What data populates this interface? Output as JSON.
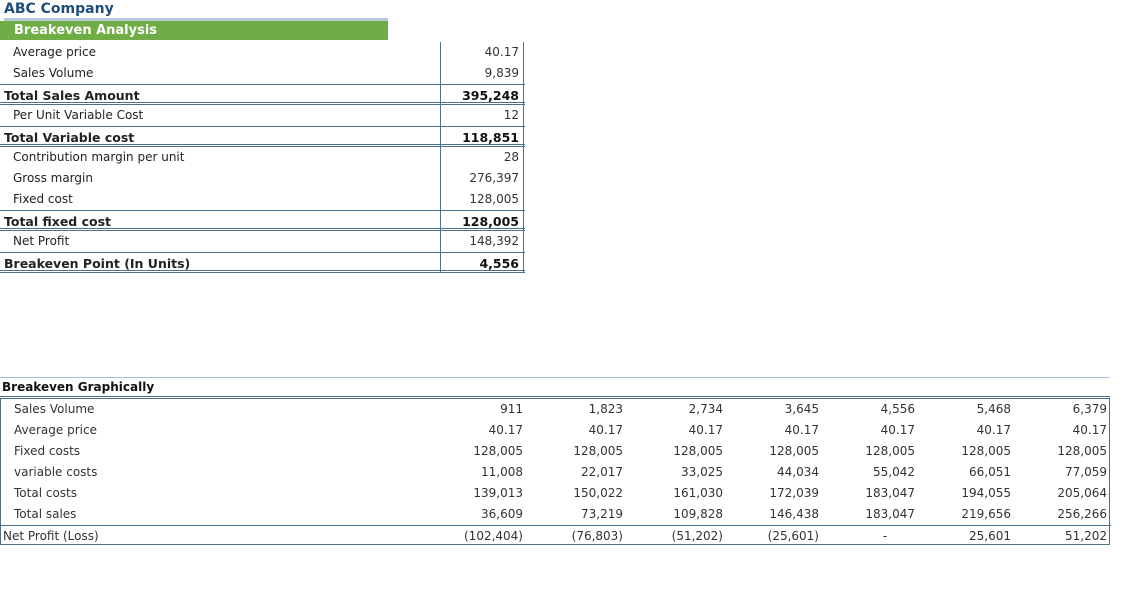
{
  "company": "ABC Company",
  "section_title": "Breakeven Analysis",
  "analysis": [
    {
      "label": "Average price",
      "value": "40.17",
      "style": "item"
    },
    {
      "label": "Sales Volume",
      "value": "9,839",
      "style": "item"
    },
    {
      "label": "Total Sales Amount",
      "value": "395,248",
      "style": "total"
    },
    {
      "label": "Per Unit Variable Cost",
      "value": "12",
      "style": "item"
    },
    {
      "label": "Total Variable cost",
      "value": "118,851",
      "style": "total"
    },
    {
      "label": "Contribution margin per unit",
      "value": "28",
      "style": "item"
    },
    {
      "label": "Gross margin",
      "value": "276,397",
      "style": "item"
    },
    {
      "label": "Fixed cost",
      "value": "128,005",
      "style": "item"
    },
    {
      "label": "Total fixed cost",
      "value": "128,005",
      "style": "total"
    },
    {
      "label": "Net Profit",
      "value": "148,392",
      "style": "item"
    },
    {
      "label": "Breakeven Point (In Units)",
      "value": "4,556",
      "style": "total"
    }
  ],
  "graph_title": "Breakeven Graphically",
  "graph_rows": [
    {
      "label": "Sales Volume",
      "values": [
        "911",
        "1,823",
        "2,734",
        "3,645",
        "4,556",
        "5,468",
        "6,379"
      ]
    },
    {
      "label": "Average price",
      "values": [
        "40.17",
        "40.17",
        "40.17",
        "40.17",
        "40.17",
        "40.17",
        "40.17"
      ]
    },
    {
      "label": "Fixed costs",
      "values": [
        "128,005",
        "128,005",
        "128,005",
        "128,005",
        "128,005",
        "128,005",
        "128,005"
      ]
    },
    {
      "label": "variable costs",
      "values": [
        "11,008",
        "22,017",
        "33,025",
        "44,034",
        "55,042",
        "66,051",
        "77,059"
      ]
    },
    {
      "label": "Total costs",
      "values": [
        "139,013",
        "150,022",
        "161,030",
        "172,039",
        "183,047",
        "194,055",
        "205,064"
      ]
    },
    {
      "label": "Total sales",
      "values": [
        "36,609",
        "73,219",
        "109,828",
        "146,438",
        "183,047",
        "219,656",
        "256,266"
      ]
    },
    {
      "label": "Net Profit (Loss)",
      "values": [
        "(102,404)",
        "(76,803)",
        "(51,202)",
        "(25,601)",
        "-",
        "25,601",
        "51,202"
      ]
    }
  ]
}
